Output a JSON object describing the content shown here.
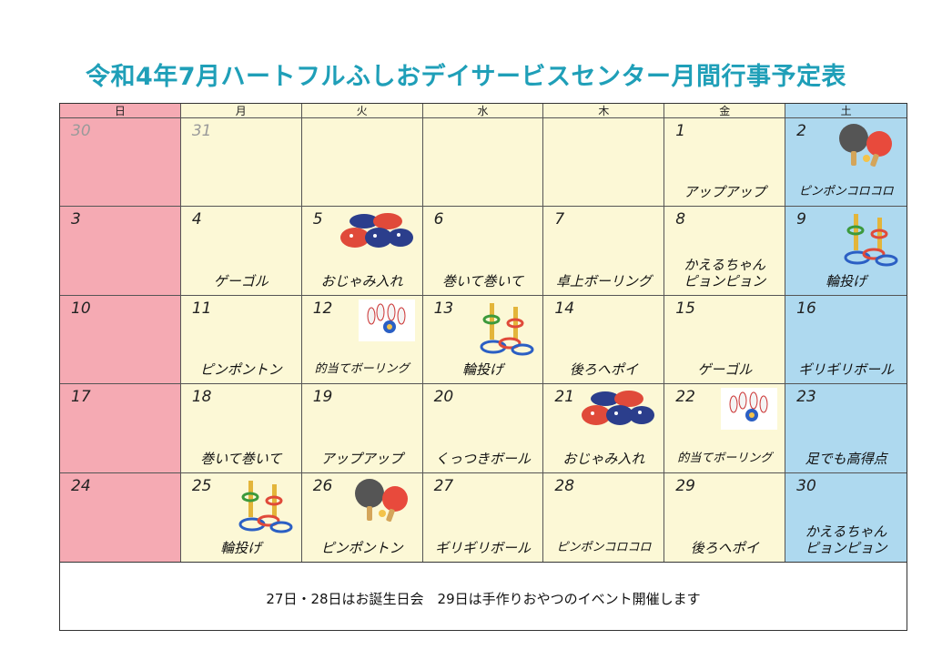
{
  "title": "令和4年7月ハートフルふしおデイサービスセンター月間行事予定表",
  "weekdays": [
    "日",
    "月",
    "火",
    "水",
    "木",
    "金",
    "土"
  ],
  "cells": [
    [
      {
        "day": "30",
        "dim": true,
        "event": ""
      },
      {
        "day": "31",
        "dim": true,
        "event": ""
      },
      {
        "day": "",
        "event": ""
      },
      {
        "day": "",
        "event": ""
      },
      {
        "day": "",
        "event": ""
      },
      {
        "day": "1",
        "event": "アップアップ"
      },
      {
        "day": "2",
        "event": "ピンポンコロコロ",
        "icon": "pingpong"
      }
    ],
    [
      {
        "day": "3",
        "event": ""
      },
      {
        "day": "4",
        "event": "ゲーゴル"
      },
      {
        "day": "5",
        "event": "おじゃみ入れ",
        "icon": "beanbags"
      },
      {
        "day": "6",
        "event": "巻いて巻いて"
      },
      {
        "day": "7",
        "event": "卓上ボーリング"
      },
      {
        "day": "8",
        "event": "かえるちゃん\nピョンピョン"
      },
      {
        "day": "9",
        "event": "輪投げ",
        "icon": "ringtoss"
      }
    ],
    [
      {
        "day": "10",
        "event": ""
      },
      {
        "day": "11",
        "event": "ピンポントン"
      },
      {
        "day": "12",
        "event": "的当てボーリング",
        "icon": "bowling"
      },
      {
        "day": "13",
        "event": "輪投げ",
        "icon": "ringtoss"
      },
      {
        "day": "14",
        "event": "後ろへポイ"
      },
      {
        "day": "15",
        "event": "ゲーゴル"
      },
      {
        "day": "16",
        "event": "ギリギリボール"
      }
    ],
    [
      {
        "day": "17",
        "event": ""
      },
      {
        "day": "18",
        "event": "巻いて巻いて"
      },
      {
        "day": "19",
        "event": "アップアップ"
      },
      {
        "day": "20",
        "event": "くっつきボール"
      },
      {
        "day": "21",
        "event": "おじゃみ入れ",
        "icon": "beanbags"
      },
      {
        "day": "22",
        "event": "的当てボーリング",
        "icon": "bowling"
      },
      {
        "day": "23",
        "event": "足でも高得点"
      }
    ],
    [
      {
        "day": "24",
        "event": ""
      },
      {
        "day": "25",
        "event": "輪投げ",
        "icon": "ringtoss"
      },
      {
        "day": "26",
        "event": "ピンポントン",
        "icon": "pingpong"
      },
      {
        "day": "27",
        "event": "ギリギリボール"
      },
      {
        "day": "28",
        "event": "ピンポンコロコロ"
      },
      {
        "day": "29",
        "event": "後ろへポイ"
      },
      {
        "day": "30",
        "event": "かえるちゃん\nピョンピョン"
      }
    ]
  ],
  "footer": "27日・28日はお誕生日会　29日は手作りおやつのイベント開催します",
  "colors": {
    "title": "#1f9fb8",
    "sunday": "#f5aab3",
    "weekday": "#fcf8d6",
    "saturday": "#aed9ef"
  }
}
